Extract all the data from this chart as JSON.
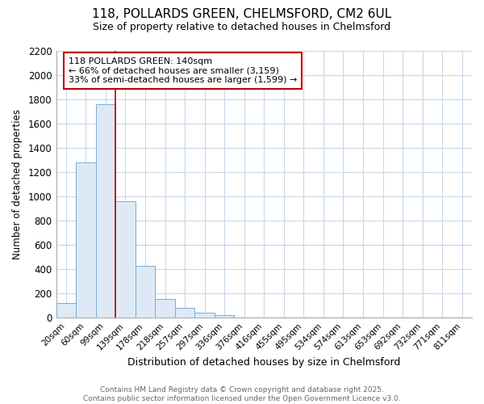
{
  "title_line1": "118, POLLARDS GREEN, CHELMSFORD, CM2 6UL",
  "title_line2": "Size of property relative to detached houses in Chelmsford",
  "xlabel": "Distribution of detached houses by size in Chelmsford",
  "ylabel": "Number of detached properties",
  "categories": [
    "20sqm",
    "60sqm",
    "99sqm",
    "139sqm",
    "178sqm",
    "218sqm",
    "257sqm",
    "297sqm",
    "336sqm",
    "376sqm",
    "416sqm",
    "455sqm",
    "495sqm",
    "534sqm",
    "574sqm",
    "613sqm",
    "653sqm",
    "692sqm",
    "732sqm",
    "771sqm",
    "811sqm"
  ],
  "values": [
    120,
    1280,
    1760,
    960,
    430,
    155,
    80,
    45,
    25,
    0,
    0,
    0,
    0,
    0,
    0,
    0,
    0,
    0,
    0,
    0,
    0
  ],
  "bar_color": "#ddeaf5",
  "bar_edge_color": "#7aadcf",
  "bar_width": 1.0,
  "ylim": [
    0,
    2200
  ],
  "yticks": [
    0,
    200,
    400,
    600,
    800,
    1000,
    1200,
    1400,
    1600,
    1800,
    2000,
    2200
  ],
  "vline_x": 3.0,
  "vline_color": "#c00000",
  "annotation_title": "118 POLLARDS GREEN: 140sqm",
  "annotation_line2": "← 66% of detached houses are smaller (3,159)",
  "annotation_line3": "33% of semi-detached houses are larger (1,599) →",
  "annotation_box_color": "#c00000",
  "annotation_box_fill": "#ffffff",
  "footer_line1": "Contains HM Land Registry data © Crown copyright and database right 2025.",
  "footer_line2": "Contains public sector information licensed under the Open Government Licence v3.0.",
  "background_color": "#ffffff",
  "grid_color": "#c8d8e8"
}
